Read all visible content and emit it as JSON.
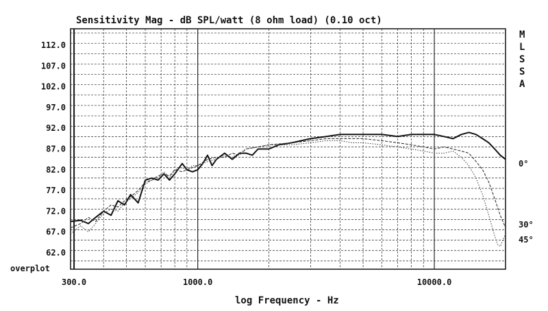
{
  "chart_data": {
    "type": "line",
    "title": "Sensitivity Mag - dB SPL/watt (8 ohm load) (0.10 oct)",
    "xlabel": "log Frequency - Hz",
    "ylabel": "",
    "x_scale": "log",
    "grid": true,
    "xlim": [
      290,
      20000
    ],
    "ylim": [
      58,
      116
    ],
    "x_ticks": [
      {
        "value": 300,
        "label": "300.0"
      },
      {
        "value": 1000,
        "label": "1000.0"
      },
      {
        "value": 10000,
        "label": "10000.0"
      }
    ],
    "y_ticks": [
      {
        "value": 112,
        "label": "112.0"
      },
      {
        "value": 107,
        "label": "107.0"
      },
      {
        "value": 102,
        "label": "102.0"
      },
      {
        "value": 97,
        "label": "97.0"
      },
      {
        "value": 92,
        "label": "92.0"
      },
      {
        "value": 87,
        "label": "87.0"
      },
      {
        "value": 82,
        "label": "82.0"
      },
      {
        "value": 77,
        "label": "77.0"
      },
      {
        "value": 72,
        "label": "72.0"
      },
      {
        "value": 67,
        "label": "67.0"
      },
      {
        "value": 62,
        "label": "62.0"
      }
    ],
    "overplot_label": "overplot",
    "side_letters": [
      "M",
      "L",
      "S",
      "S",
      "A"
    ],
    "series": [
      {
        "name": "0°",
        "style": "solid",
        "end_label": "0°",
        "points": [
          [
            290,
            69.5
          ],
          [
            320,
            69.8
          ],
          [
            345,
            69
          ],
          [
            370,
            70.5
          ],
          [
            400,
            72
          ],
          [
            430,
            71
          ],
          [
            460,
            74.5
          ],
          [
            490,
            73.5
          ],
          [
            520,
            76
          ],
          [
            560,
            74
          ],
          [
            600,
            79.5
          ],
          [
            640,
            80
          ],
          [
            680,
            79.5
          ],
          [
            720,
            81
          ],
          [
            760,
            79.5
          ],
          [
            800,
            81
          ],
          [
            860,
            83.5
          ],
          [
            900,
            82
          ],
          [
            950,
            81.5
          ],
          [
            1000,
            82
          ],
          [
            1050,
            83.5
          ],
          [
            1100,
            85.5
          ],
          [
            1150,
            83
          ],
          [
            1200,
            84.5
          ],
          [
            1300,
            86
          ],
          [
            1400,
            84.5
          ],
          [
            1500,
            86
          ],
          [
            1600,
            86
          ],
          [
            1700,
            85.5
          ],
          [
            1800,
            87
          ],
          [
            2000,
            87
          ],
          [
            2200,
            88
          ],
          [
            2500,
            88.5
          ],
          [
            3000,
            89.5
          ],
          [
            3500,
            90
          ],
          [
            4000,
            90.5
          ],
          [
            4500,
            90.5
          ],
          [
            5000,
            90.5
          ],
          [
            5500,
            90.5
          ],
          [
            6000,
            90.5
          ],
          [
            7000,
            90
          ],
          [
            8000,
            90.5
          ],
          [
            9000,
            90.5
          ],
          [
            10000,
            90.5
          ],
          [
            11000,
            90
          ],
          [
            12000,
            89.5
          ],
          [
            13000,
            90.5
          ],
          [
            14000,
            91
          ],
          [
            15000,
            90.5
          ],
          [
            16000,
            89.5
          ],
          [
            17000,
            88.5
          ],
          [
            18000,
            87
          ],
          [
            19000,
            85.5
          ],
          [
            20000,
            84.5
          ]
        ]
      },
      {
        "name": "30°",
        "style": "dashed",
        "end_label": "30°",
        "points": [
          [
            290,
            68
          ],
          [
            320,
            69
          ],
          [
            345,
            70.5
          ],
          [
            370,
            69.5
          ],
          [
            400,
            72
          ],
          [
            430,
            73.5
          ],
          [
            460,
            73
          ],
          [
            490,
            74.5
          ],
          [
            520,
            75.5
          ],
          [
            560,
            77
          ],
          [
            600,
            79
          ],
          [
            640,
            79.5
          ],
          [
            680,
            80.5
          ],
          [
            720,
            81
          ],
          [
            760,
            80.5
          ],
          [
            800,
            82
          ],
          [
            860,
            81.5
          ],
          [
            900,
            82
          ],
          [
            950,
            82.5
          ],
          [
            1000,
            83
          ],
          [
            1100,
            84.5
          ],
          [
            1200,
            85
          ],
          [
            1300,
            85
          ],
          [
            1400,
            86
          ],
          [
            1500,
            85.5
          ],
          [
            1600,
            87
          ],
          [
            1800,
            87.5
          ],
          [
            2000,
            88
          ],
          [
            2500,
            88.5
          ],
          [
            3000,
            89
          ],
          [
            3500,
            89.5
          ],
          [
            4000,
            89.5
          ],
          [
            4500,
            89.5
          ],
          [
            5000,
            89.5
          ],
          [
            6000,
            89
          ],
          [
            7000,
            88.5
          ],
          [
            8000,
            88
          ],
          [
            9000,
            87.5
          ],
          [
            10000,
            87
          ],
          [
            11000,
            87.5
          ],
          [
            12000,
            87
          ],
          [
            13000,
            86.5
          ],
          [
            14000,
            86
          ],
          [
            15000,
            84
          ],
          [
            16000,
            82
          ],
          [
            17000,
            79
          ],
          [
            18000,
            75
          ],
          [
            19000,
            71
          ],
          [
            20000,
            68
          ]
        ]
      },
      {
        "name": "45°",
        "style": "dotted",
        "end_label": "45°",
        "points": [
          [
            290,
            66.5
          ],
          [
            320,
            68.5
          ],
          [
            345,
            67
          ],
          [
            370,
            69
          ],
          [
            400,
            71.5
          ],
          [
            430,
            72.5
          ],
          [
            460,
            72
          ],
          [
            490,
            74
          ],
          [
            520,
            75
          ],
          [
            560,
            76.5
          ],
          [
            600,
            78.5
          ],
          [
            640,
            79.5
          ],
          [
            680,
            80
          ],
          [
            720,
            81.5
          ],
          [
            760,
            80
          ],
          [
            800,
            82
          ],
          [
            860,
            82.5
          ],
          [
            900,
            82
          ],
          [
            950,
            83
          ],
          [
            1000,
            83
          ],
          [
            1100,
            84
          ],
          [
            1200,
            84.5
          ],
          [
            1300,
            85.5
          ],
          [
            1400,
            85
          ],
          [
            1500,
            86
          ],
          [
            1600,
            87
          ],
          [
            1800,
            87.5
          ],
          [
            2000,
            88
          ],
          [
            2500,
            88
          ],
          [
            3000,
            88.5
          ],
          [
            3500,
            89
          ],
          [
            4000,
            89
          ],
          [
            4500,
            88.5
          ],
          [
            5000,
            88.5
          ],
          [
            6000,
            88
          ],
          [
            7000,
            87.5
          ],
          [
            8000,
            87
          ],
          [
            9000,
            86.5
          ],
          [
            10000,
            86
          ],
          [
            11000,
            86
          ],
          [
            12000,
            86.5
          ],
          [
            13000,
            85
          ],
          [
            14000,
            83
          ],
          [
            15000,
            80
          ],
          [
            16000,
            76
          ],
          [
            17000,
            71
          ],
          [
            18000,
            66
          ],
          [
            18500,
            64
          ],
          [
            19000,
            63.5
          ],
          [
            19500,
            65
          ],
          [
            20000,
            66.5
          ]
        ]
      }
    ]
  }
}
